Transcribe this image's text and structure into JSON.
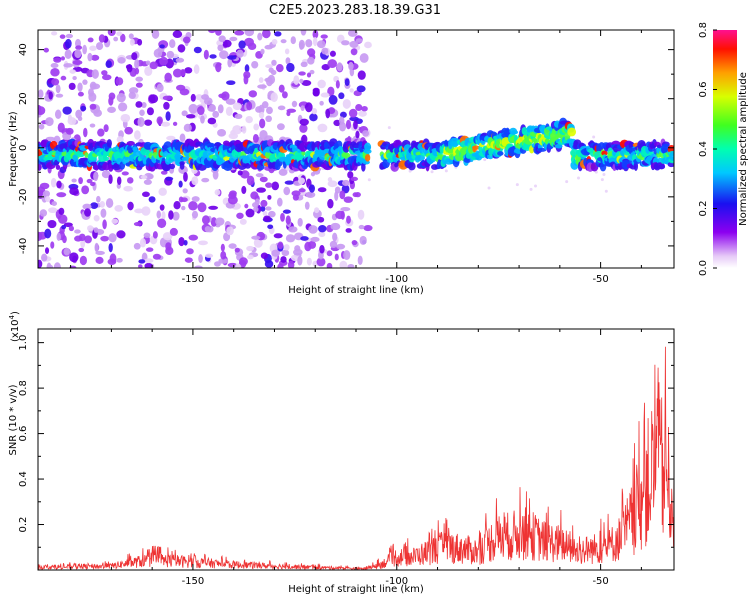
{
  "title": "C2E5.2023.283.18.39.G31",
  "chart_data": [
    {
      "type": "heatmap",
      "xlabel": "Height of straight line (km)",
      "ylabel": "Frequency (Hz)",
      "xlim": [
        -188,
        -32
      ],
      "ylim": [
        -49,
        48
      ],
      "xticks": [
        -150,
        -100,
        -50
      ],
      "yticks": [
        -40,
        -20,
        0,
        20,
        40
      ],
      "colorbar": {
        "label": "Normalized spectral amplitude",
        "range": [
          0.0,
          0.8
        ],
        "ticks": [
          "0.0",
          "0.2",
          "0.4",
          "0.6",
          "0.8"
        ]
      },
      "bands": [
        {
          "x": [
            -188,
            -107
          ],
          "center_hz": -3,
          "halfwidth_hz": 4,
          "noise": "dense"
        },
        {
          "x": [
            -107,
            -88
          ],
          "center_hz": -3,
          "halfwidth_hz": 4,
          "noise": "none"
        },
        {
          "x": [
            -88,
            -57
          ],
          "center_hz": [
            -2,
            6
          ],
          "halfwidth_hz": 4,
          "noise": "none"
        },
        {
          "x": [
            -57,
            -32
          ],
          "center_hz": -3,
          "halfwidth_hz": 4,
          "noise": "none"
        }
      ]
    },
    {
      "type": "line",
      "xlabel": "Height of straight line (km)",
      "ylabel": "SNR (10 * v/v)",
      "yscale_label": "(x10",
      "yscale_exp": "4",
      "yscale_close": ")",
      "xlim": [
        -188,
        -32
      ],
      "ylim": [
        0,
        1.06
      ],
      "xticks": [
        -150,
        -100,
        -50
      ],
      "yticks": [
        "0.2",
        "0.4",
        "0.6",
        "0.8",
        "1.0"
      ],
      "series": [
        {
          "color": "#ee3333",
          "envelope_x": [
            -188,
            -170,
            -160,
            -150,
            -140,
            -120,
            -108,
            -104,
            -100,
            -96,
            -92,
            -88,
            -84,
            -80,
            -76,
            -72,
            -68,
            -64,
            -60,
            -56,
            -52,
            -48,
            -45,
            -42,
            -40,
            -38,
            -36,
            -34,
            -32
          ],
          "envelope_y": [
            0.02,
            0.03,
            0.08,
            0.06,
            0.04,
            0.02,
            0.01,
            0.04,
            0.1,
            0.1,
            0.14,
            0.18,
            0.16,
            0.14,
            0.24,
            0.26,
            0.28,
            0.22,
            0.2,
            0.14,
            0.16,
            0.18,
            0.25,
            0.4,
            0.55,
            0.7,
            0.85,
            0.7,
            0.5
          ]
        }
      ]
    }
  ]
}
